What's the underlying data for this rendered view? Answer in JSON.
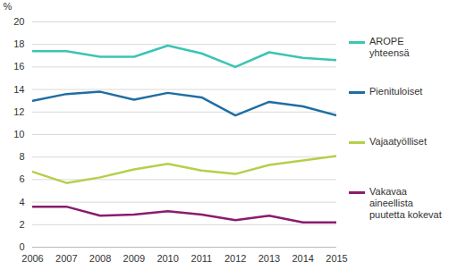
{
  "chart_data": {
    "type": "line",
    "y_label": "%",
    "x": [
      2006,
      2007,
      2008,
      2009,
      2010,
      2011,
      2012,
      2013,
      2014,
      2015
    ],
    "xlim": [
      2006,
      2015
    ],
    "xticks": [
      2006,
      2007,
      2008,
      2009,
      2010,
      2011,
      2012,
      2013,
      2014,
      2015
    ],
    "ylim": [
      0,
      20
    ],
    "yticks": [
      0,
      2,
      4,
      6,
      8,
      10,
      12,
      14,
      16,
      18,
      20
    ],
    "grid": true,
    "legend": "right",
    "series": [
      {
        "name": "AROPE yhteensä",
        "color": "#3cc4b4",
        "values": [
          17.4,
          17.4,
          16.9,
          16.9,
          17.9,
          17.2,
          16.0,
          17.3,
          16.8,
          16.6
        ]
      },
      {
        "name": "Pienituloiset",
        "color": "#1f6ea3",
        "values": [
          13.0,
          13.6,
          13.8,
          13.1,
          13.7,
          13.3,
          11.7,
          12.9,
          12.5,
          11.7
        ]
      },
      {
        "name": "Vajaatyölliset",
        "color": "#b4d04a",
        "values": [
          6.7,
          5.7,
          6.2,
          6.9,
          7.4,
          6.8,
          6.5,
          7.3,
          7.7,
          8.1
        ]
      },
      {
        "name": "Vakavaa aineellista puutetta kokevat",
        "color": "#8a1c6e",
        "values": [
          3.6,
          3.6,
          2.8,
          2.9,
          3.2,
          2.9,
          2.4,
          2.8,
          2.2,
          2.2
        ]
      }
    ]
  }
}
